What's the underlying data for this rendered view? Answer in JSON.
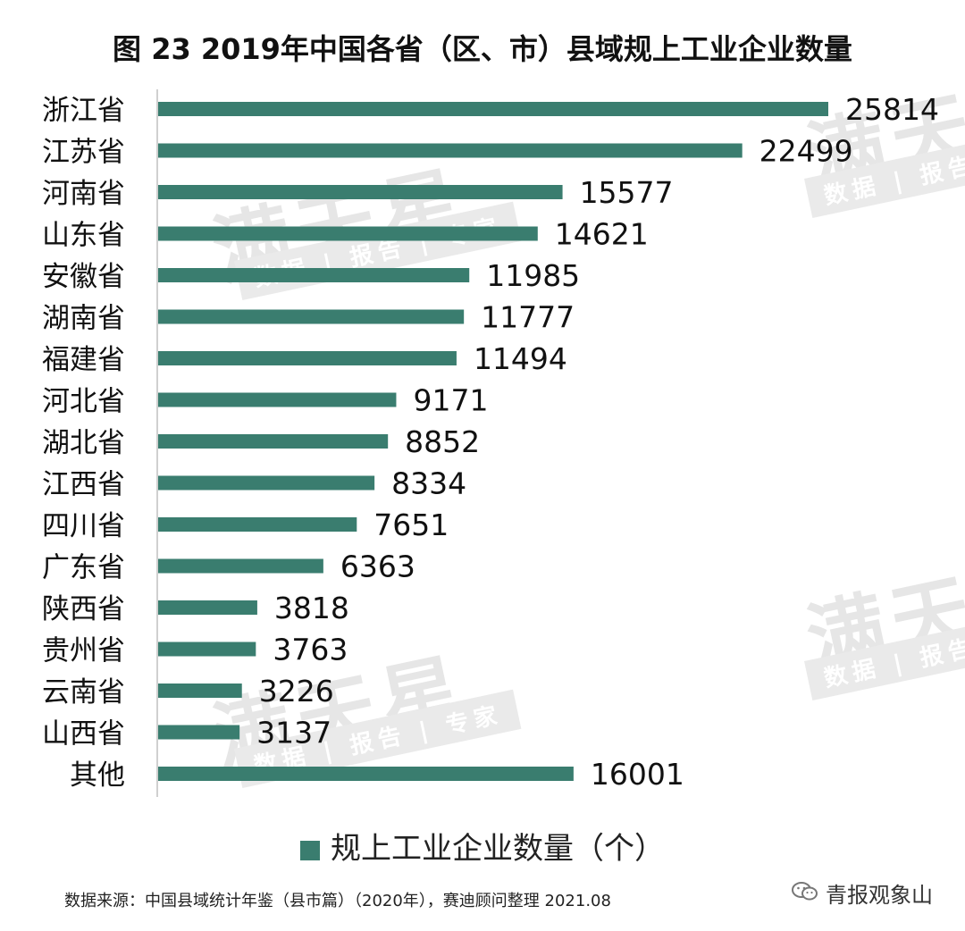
{
  "title": "图 23  2019年中国各省（区、市）县域规上工业企业数量",
  "watermark": {
    "big": "满天星",
    "sub": "数据 | 报告 | 专家"
  },
  "chart_data": {
    "type": "bar",
    "orientation": "horizontal",
    "categories": [
      "浙江省",
      "江苏省",
      "河南省",
      "山东省",
      "安徽省",
      "湖南省",
      "福建省",
      "河北省",
      "湖北省",
      "江西省",
      "四川省",
      "广东省",
      "陕西省",
      "贵州省",
      "云南省",
      "山西省",
      "其他"
    ],
    "values": [
      25814,
      22499,
      15577,
      14621,
      11985,
      11777,
      11494,
      9171,
      8852,
      8334,
      7651,
      6363,
      3818,
      3763,
      3226,
      3137,
      16001
    ],
    "series_name": "规上工业企业数量（个）",
    "xlim": [
      0,
      25814
    ],
    "color": "#3a7d6f",
    "title": "图 23  2019年中国各省（区、市）县域规上工业企业数量"
  },
  "source_text": "数据来源：中国县域统计年鉴（县市篇）（2020年），赛迪顾问整理   2021.08",
  "wechat_label": "青报观象山",
  "wechat_icon": "wechat-icon"
}
